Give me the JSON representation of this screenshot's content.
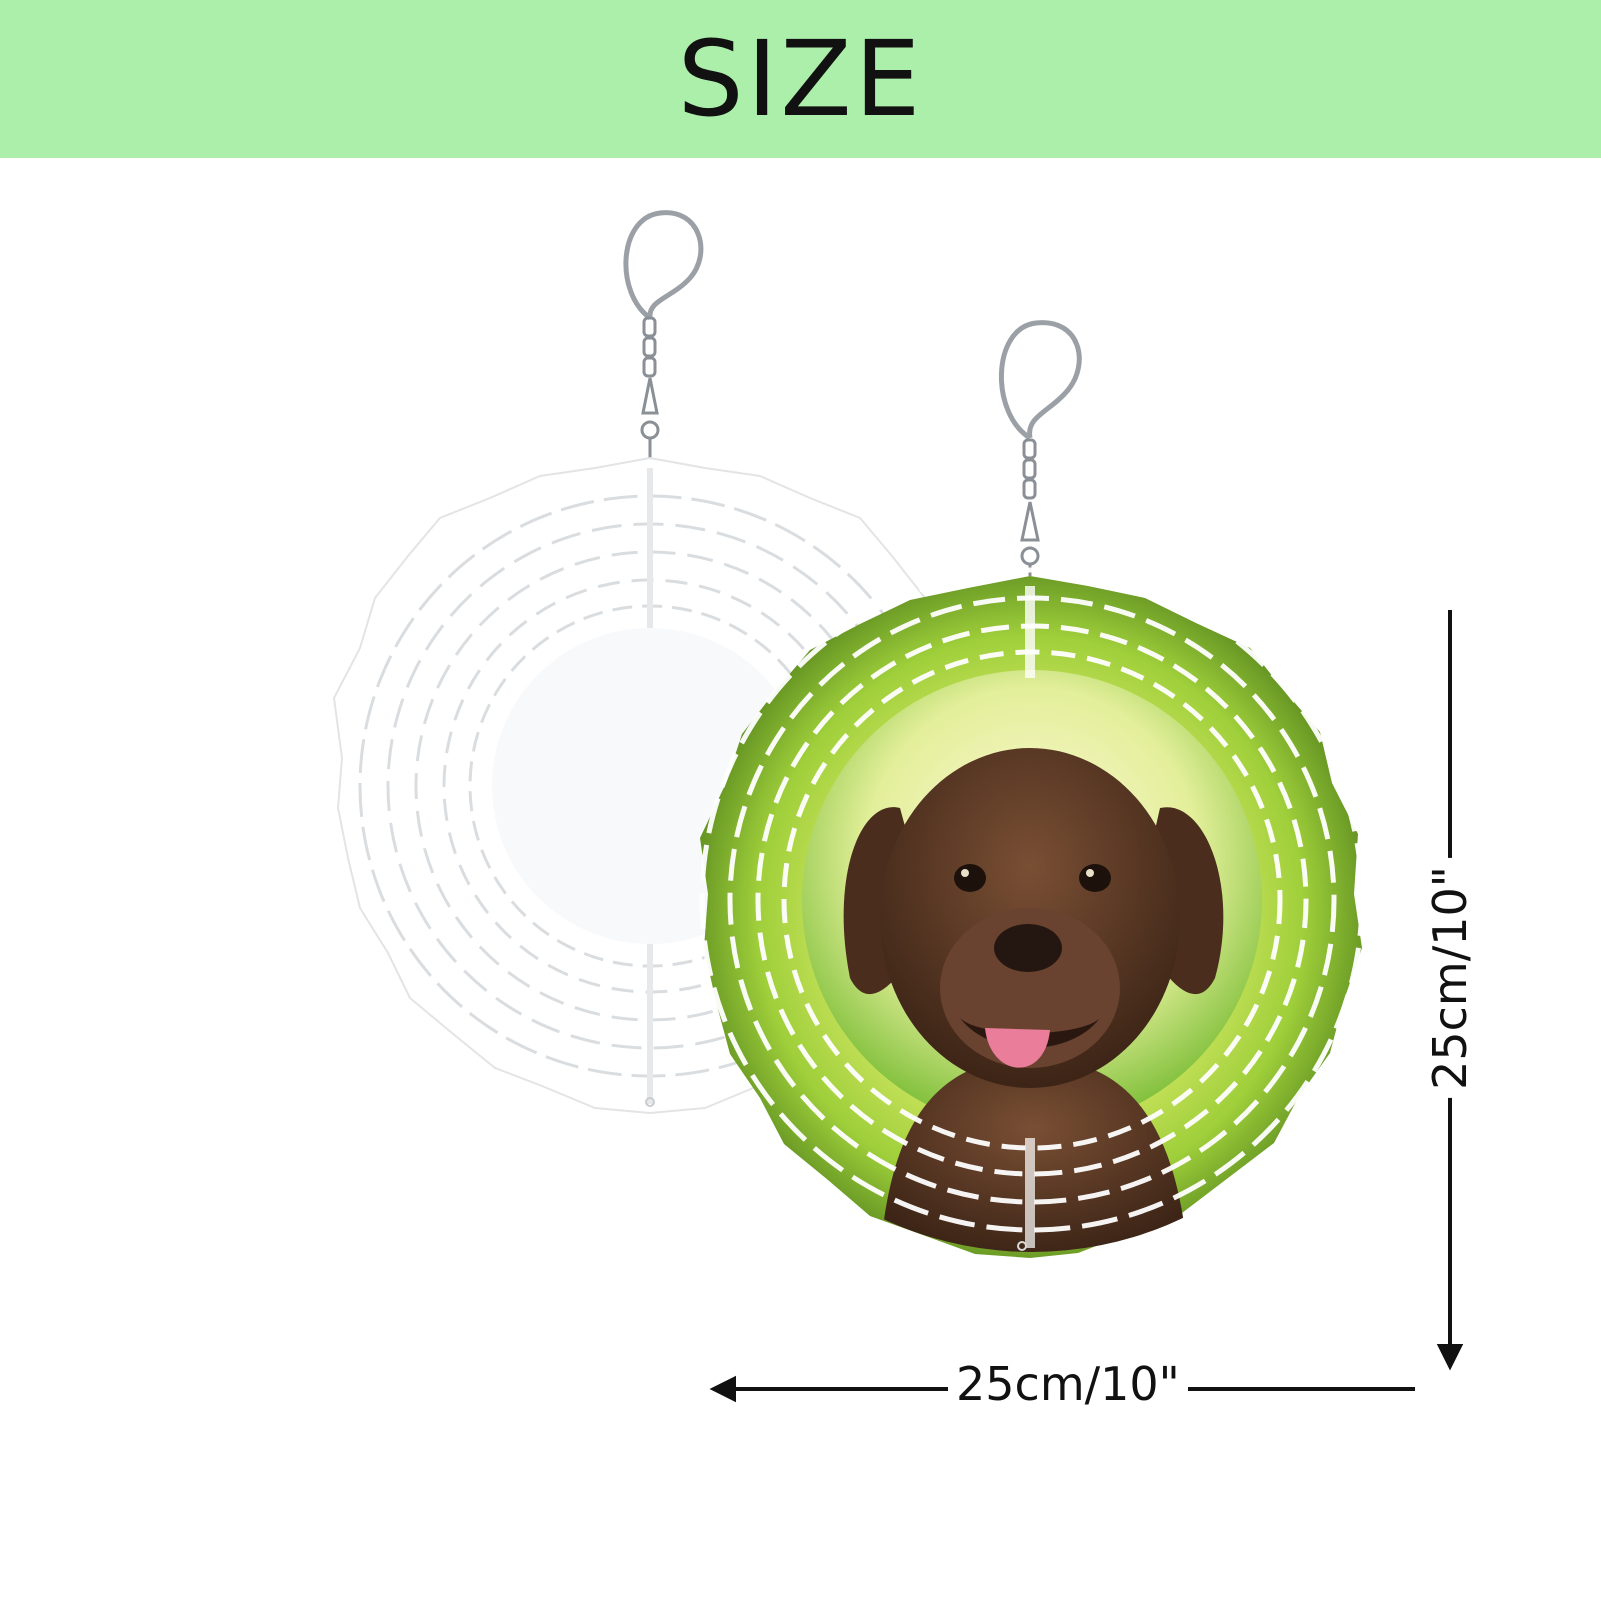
{
  "banner": {
    "title": "SIZE",
    "background_color": "#acefab"
  },
  "products": [
    {
      "name": "blank-wind-spinner",
      "finish": "white"
    },
    {
      "name": "printed-wind-spinner",
      "finish": "puppy photo print"
    }
  ],
  "dimensions": {
    "width_label": "25cm/10\"",
    "height_label": "25cm/10\""
  },
  "colors": {
    "arrow": "#111111",
    "spinner_blank": "#ffffff",
    "spinner_print_green": "#9fcf3a",
    "puppy_brown": "#5b3a27"
  }
}
